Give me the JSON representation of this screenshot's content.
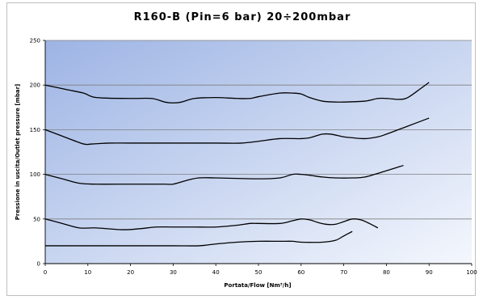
{
  "chart_data": {
    "type": "line",
    "title": "R160-B (Pin=6 bar) 20÷200mbar",
    "xlabel": "Portata/Flow [Nm³/h]",
    "ylabel": "Pressione in uscita/Outlet pressure [mbar]",
    "xlim": [
      0,
      100
    ],
    "ylim": [
      0,
      250
    ],
    "xticks": [
      "0",
      "10",
      "20",
      "30",
      "40",
      "50",
      "60",
      "70",
      "80",
      "90",
      "100"
    ],
    "yticks": [
      "0",
      "50",
      "100",
      "150",
      "200",
      "250"
    ],
    "grid": "horizontal",
    "legend": "none",
    "colors": {
      "plot_bg_start": "#9db4e4",
      "plot_bg_end": "#f4f7fd",
      "line": "#000000",
      "grid": "#7f7f7f"
    },
    "series": [
      {
        "x": [
          0,
          5,
          9,
          12,
          20,
          25,
          28,
          30,
          32,
          35,
          40,
          45,
          48,
          50,
          55,
          58,
          60,
          62,
          65,
          68,
          70,
          75,
          78,
          80,
          83,
          85,
          88,
          90
        ],
        "y": [
          200,
          195,
          191,
          186,
          185,
          185,
          181,
          180,
          181,
          185,
          186,
          185,
          185,
          187,
          191,
          191,
          190,
          186,
          182,
          181,
          181,
          182,
          185,
          185,
          184,
          186,
          196,
          203
        ]
      },
      {
        "x": [
          0,
          5,
          9,
          11,
          15,
          20,
          30,
          40,
          46,
          50,
          55,
          60,
          62,
          65,
          67,
          70,
          72,
          75,
          78,
          80,
          85,
          90
        ],
        "y": [
          150,
          141,
          134,
          134,
          135,
          135,
          135,
          135,
          135,
          137,
          140,
          140,
          141,
          145,
          145,
          142,
          141,
          140,
          142,
          145,
          154,
          163
        ]
      },
      {
        "x": [
          0,
          4,
          8,
          12,
          20,
          28,
          30,
          33,
          36,
          40,
          50,
          55,
          58,
          60,
          62,
          65,
          68,
          72,
          75,
          80,
          84
        ],
        "y": [
          100,
          95,
          90,
          89,
          89,
          89,
          89,
          93,
          96,
          96,
          95,
          96,
          100,
          100,
          99,
          97,
          96,
          96,
          97,
          104,
          110
        ]
      },
      {
        "x": [
          0,
          4,
          8,
          12,
          18,
          22,
          26,
          30,
          35,
          40,
          45,
          48,
          50,
          55,
          58,
          60,
          62,
          64,
          66,
          68,
          70,
          72,
          74,
          76,
          78
        ],
        "y": [
          50,
          45,
          40,
          40,
          38,
          39,
          41,
          41,
          41,
          41,
          43,
          45,
          45,
          45,
          48,
          50,
          49,
          46,
          44,
          44,
          47,
          50,
          49,
          45,
          40
        ]
      },
      {
        "x": [
          0,
          10,
          20,
          30,
          36,
          40,
          45,
          50,
          55,
          58,
          60,
          65,
          68,
          70,
          72
        ],
        "y": [
          20,
          20,
          20,
          20,
          20,
          22,
          24,
          25,
          25,
          25,
          24,
          24,
          26,
          31,
          36
        ]
      }
    ]
  }
}
